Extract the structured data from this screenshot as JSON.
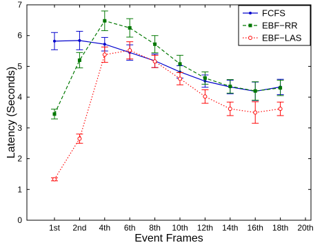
{
  "chart_data": {
    "type": "line",
    "xlabel": "Event Frames",
    "ylabel": "Latency (Seconds)",
    "categories": [
      "1st",
      "2nd",
      "4th",
      "6th",
      "8th",
      "10th",
      "12th",
      "14th",
      "16th",
      "18th",
      "20th"
    ],
    "ylim": [
      0,
      7
    ],
    "yticks": [
      "0",
      "1",
      "2",
      "3",
      "4",
      "5",
      "6",
      "7"
    ],
    "grid": false,
    "legend_position": "top-right",
    "series": [
      {
        "name": "FCFS",
        "color": "#0000cc",
        "line_style": "solid",
        "marker": "dot",
        "values": [
          5.82,
          5.84,
          5.72,
          5.45,
          5.18,
          4.82,
          4.52,
          4.33,
          4.19,
          4.33,
          null
        ],
        "errors": [
          0.28,
          0.3,
          0.22,
          0.25,
          0.22,
          0.2,
          0.2,
          0.22,
          0.3,
          0.25,
          null
        ]
      },
      {
        "name": "EBF−RR",
        "color": "#007700",
        "line_style": "dashed",
        "marker": "square",
        "values": [
          3.45,
          5.2,
          6.48,
          6.25,
          5.72,
          5.08,
          4.62,
          4.35,
          4.2,
          4.3,
          null
        ],
        "errors": [
          0.16,
          0.25,
          0.32,
          0.3,
          0.28,
          0.28,
          0.2,
          0.22,
          0.3,
          0.25,
          null
        ]
      },
      {
        "name": "EBF−LAS",
        "color": "#ff0000",
        "line_style": "dotted",
        "marker": "circle",
        "values": [
          1.33,
          2.65,
          5.38,
          5.52,
          5.16,
          4.6,
          4.02,
          3.62,
          3.5,
          3.62,
          null
        ],
        "errors": [
          0.05,
          0.15,
          0.25,
          0.28,
          0.2,
          0.2,
          0.22,
          0.22,
          0.35,
          0.22,
          null
        ]
      }
    ]
  }
}
